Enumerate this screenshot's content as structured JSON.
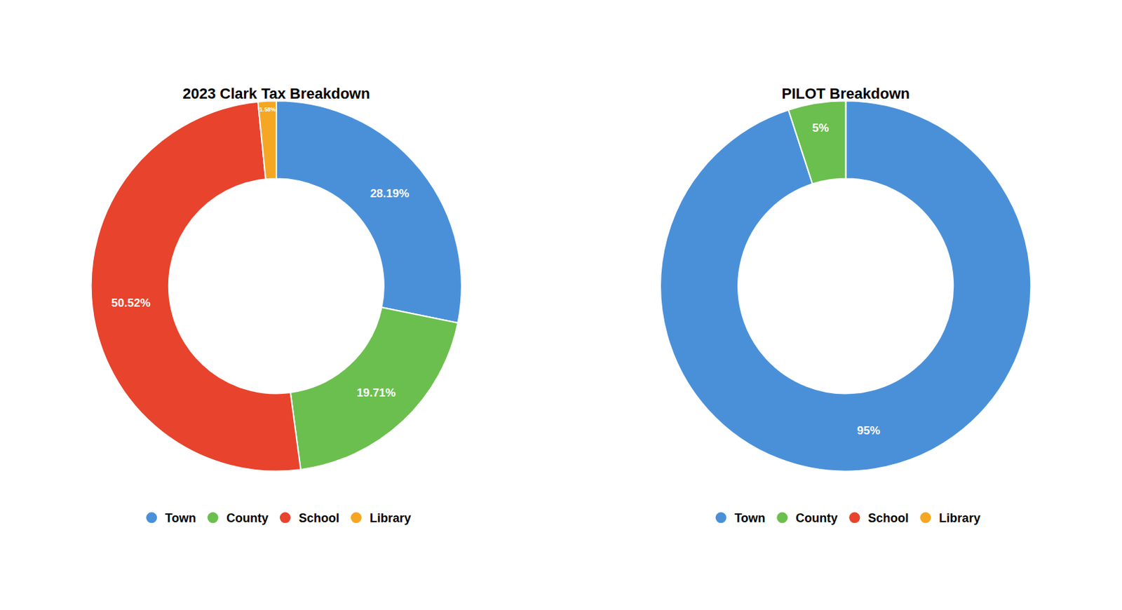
{
  "chart_data": [
    {
      "type": "pie",
      "title": "2023 Clark Tax Breakdown",
      "categories": [
        "Town",
        "County",
        "School",
        "Library"
      ],
      "values": [
        28.19,
        19.71,
        50.52,
        1.58
      ],
      "value_labels": [
        "28.19%",
        "19.71%",
        "50.52%",
        "1.58%"
      ],
      "colors": [
        "#4A90D9",
        "#6BBF4E",
        "#E8432C",
        "#F5A623"
      ],
      "data_labels": true,
      "legend": "bottom"
    },
    {
      "type": "pie",
      "title": "PILOT Breakdown",
      "categories": [
        "Town",
        "County",
        "School",
        "Library"
      ],
      "values": [
        95,
        5,
        0,
        0
      ],
      "value_labels": [
        "95%",
        "5%",
        null,
        null
      ],
      "colors": [
        "#4A90D9",
        "#6BBF4E",
        "#E8432C",
        "#F5A623"
      ],
      "data_labels": true,
      "legend": "bottom"
    }
  ]
}
